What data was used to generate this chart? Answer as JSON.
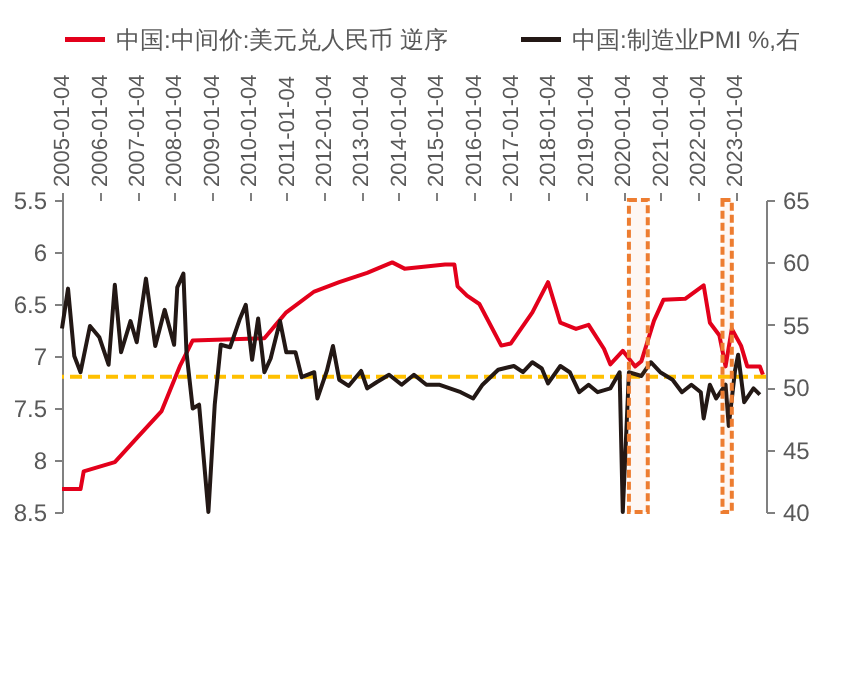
{
  "chart_data": {
    "type": "line",
    "xlim": [
      "2005-01-01",
      "2023-10-31"
    ],
    "xticks": [
      "2005-01-04",
      "2006-01-04",
      "2007-01-04",
      "2008-01-04",
      "2009-01-04",
      "2010-01-04",
      "2011-01-04",
      "2012-01-04",
      "2013-01-04",
      "2014-01-04",
      "2015-01-04",
      "2016-01-04",
      "2017-01-04",
      "2018-01-04",
      "2019-01-04",
      "2020-01-04",
      "2021-01-04",
      "2022-01-04",
      "2023-01-04"
    ],
    "ylim": [
      8.5,
      5.5
    ],
    "yticks": [
      5.5,
      6,
      6.5,
      7,
      7.5,
      8,
      8.5
    ],
    "y2lim": [
      40,
      65
    ],
    "y2ticks": [
      40,
      45,
      50,
      55,
      60,
      65
    ],
    "legend": "top",
    "series": [
      {
        "name": "中国:中间价:美元兑人民币 逆序",
        "color": "#e3001b",
        "x": [
          "2005-01",
          "2005-07",
          "2005-08",
          "2006-06",
          "2007-01",
          "2007-09",
          "2008-03",
          "2008-07",
          "2010-06",
          "2011-01",
          "2011-10",
          "2012-06",
          "2013-03",
          "2013-11",
          "2014-03",
          "2015-04",
          "2015-07",
          "2015-08",
          "2015-11",
          "2016-03",
          "2016-10",
          "2017-01",
          "2017-08",
          "2018-01",
          "2018-05",
          "2018-10",
          "2019-02",
          "2019-07",
          "2019-09",
          "2020-01",
          "2020-05",
          "2020-07",
          "2020-11",
          "2021-02",
          "2021-09",
          "2022-03",
          "2022-05",
          "2022-08",
          "2022-10",
          "2022-12",
          "2023-03",
          "2023-05",
          "2023-09",
          "2023-10"
        ],
        "values": [
          8.28,
          8.28,
          8.11,
          8.02,
          7.79,
          7.53,
          7.09,
          6.85,
          6.83,
          6.58,
          6.38,
          6.29,
          6.2,
          6.1,
          6.16,
          6.12,
          6.12,
          6.33,
          6.42,
          6.5,
          6.9,
          6.88,
          6.58,
          6.29,
          6.68,
          6.74,
          6.7,
          6.93,
          7.08,
          6.95,
          7.1,
          7.05,
          6.66,
          6.46,
          6.45,
          6.32,
          6.68,
          6.8,
          7.1,
          6.74,
          6.9,
          7.1,
          7.1,
          7.18
        ]
      },
      {
        "name": "中国:制造业PMI %,右",
        "color": "#231815",
        "axis": "y2",
        "x": [
          "2005-01",
          "2005-03",
          "2005-05",
          "2005-07",
          "2005-10",
          "2006-01",
          "2006-04",
          "2006-06",
          "2006-08",
          "2006-11",
          "2007-01",
          "2007-04",
          "2007-07",
          "2007-10",
          "2008-01",
          "2008-02",
          "2008-04",
          "2008-05",
          "2008-07",
          "2008-09",
          "2008-12",
          "2009-02",
          "2009-04",
          "2009-07",
          "2009-10",
          "2009-12",
          "2010-02",
          "2010-04",
          "2010-06",
          "2010-08",
          "2010-11",
          "2011-01",
          "2011-04",
          "2011-06",
          "2011-10",
          "2011-11",
          "2012-02",
          "2012-04",
          "2012-06",
          "2012-09",
          "2013-01",
          "2013-03",
          "2013-06",
          "2013-10",
          "2014-02",
          "2014-06",
          "2014-10",
          "2015-02",
          "2015-09",
          "2016-01",
          "2016-04",
          "2016-09",
          "2017-02",
          "2017-05",
          "2017-08",
          "2017-11",
          "2018-01",
          "2018-05",
          "2018-08",
          "2018-11",
          "2019-02",
          "2019-05",
          "2019-09",
          "2019-12",
          "2020-01",
          "2020-03",
          "2020-07",
          "2020-10",
          "2021-01",
          "2021-05",
          "2021-08",
          "2021-11",
          "2022-02",
          "2022-03",
          "2022-05",
          "2022-07",
          "2022-10",
          "2022-11",
          "2023-01",
          "2023-02",
          "2023-04",
          "2023-07",
          "2023-09"
        ],
        "values": [
          54.7,
          57.9,
          52.5,
          51.2,
          54.9,
          54,
          51.8,
          58.2,
          52.8,
          55.3,
          53.6,
          58.7,
          53.3,
          56.2,
          53.4,
          58,
          59.1,
          52.8,
          48.3,
          48.6,
          40,
          48.6,
          53.4,
          53.2,
          55.4,
          56.6,
          52.2,
          55.5,
          51.2,
          52.3,
          55.3,
          52.8,
          52.8,
          50.8,
          51.2,
          49.1,
          51.3,
          53.3,
          50.6,
          50.1,
          51.3,
          49.9,
          50.4,
          51,
          50.2,
          51,
          50.2,
          50.2,
          49.6,
          49.1,
          50.2,
          51.4,
          51.7,
          51.2,
          52,
          51.5,
          50.3,
          51.7,
          51.2,
          49.6,
          50.2,
          49.6,
          49.9,
          51.2,
          40,
          51.2,
          50.9,
          52,
          51.2,
          50.6,
          49.6,
          50.2,
          49.6,
          47.5,
          50.2,
          49.1,
          50.2,
          46.9,
          51.3,
          52.6,
          48.8,
          49.9,
          49.4
        ]
      }
    ],
    "ref_lines": [
      {
        "axis": "y",
        "value": 7.2,
        "color": "#ffc000",
        "line_style": "dashed"
      }
    ],
    "bands": [
      {
        "axis": "x",
        "from": "2020-03",
        "to": "2020-09",
        "color": "#ed7d31"
      },
      {
        "axis": "x",
        "from": "2022-09",
        "to": "2022-12",
        "color": "#ed7d31"
      }
    ]
  }
}
